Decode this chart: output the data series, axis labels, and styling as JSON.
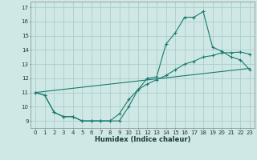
{
  "xlabel": "Humidex (Indice chaleur)",
  "bg_color": "#cfe8e5",
  "line_color": "#1a7a6e",
  "grid_color": "#aacfcc",
  "xlim": [
    -0.5,
    23.5
  ],
  "ylim": [
    8.5,
    17.4
  ],
  "xticks": [
    0,
    1,
    2,
    3,
    4,
    5,
    6,
    7,
    8,
    9,
    10,
    11,
    12,
    13,
    14,
    15,
    16,
    17,
    18,
    19,
    20,
    21,
    22,
    23
  ],
  "yticks": [
    9,
    10,
    11,
    12,
    13,
    14,
    15,
    16,
    17
  ],
  "line1_x": [
    0,
    1,
    2,
    3,
    4,
    5,
    6,
    7,
    8,
    9,
    10,
    11,
    12,
    13,
    14,
    15,
    16,
    17,
    18,
    19,
    20,
    21,
    22,
    23
  ],
  "line1_y": [
    11.0,
    10.8,
    9.6,
    9.3,
    9.3,
    9.0,
    9.0,
    9.0,
    9.0,
    9.0,
    10.0,
    11.2,
    12.0,
    12.1,
    14.4,
    15.2,
    16.3,
    16.3,
    16.7,
    14.2,
    13.9,
    13.5,
    13.3,
    12.6
  ],
  "line2_x": [
    0,
    1,
    2,
    3,
    4,
    5,
    6,
    7,
    8,
    9,
    10,
    11,
    12,
    13,
    14,
    15,
    16,
    17,
    18,
    19,
    20,
    21,
    22,
    23
  ],
  "line2_y": [
    11.0,
    10.8,
    9.6,
    9.3,
    9.3,
    9.0,
    9.0,
    9.0,
    9.0,
    9.5,
    10.5,
    11.2,
    11.6,
    11.9,
    12.2,
    12.6,
    13.0,
    13.2,
    13.5,
    13.6,
    13.8,
    13.8,
    13.85,
    13.7
  ],
  "line3_x": [
    0,
    23
  ],
  "line3_y": [
    11.0,
    12.7
  ]
}
